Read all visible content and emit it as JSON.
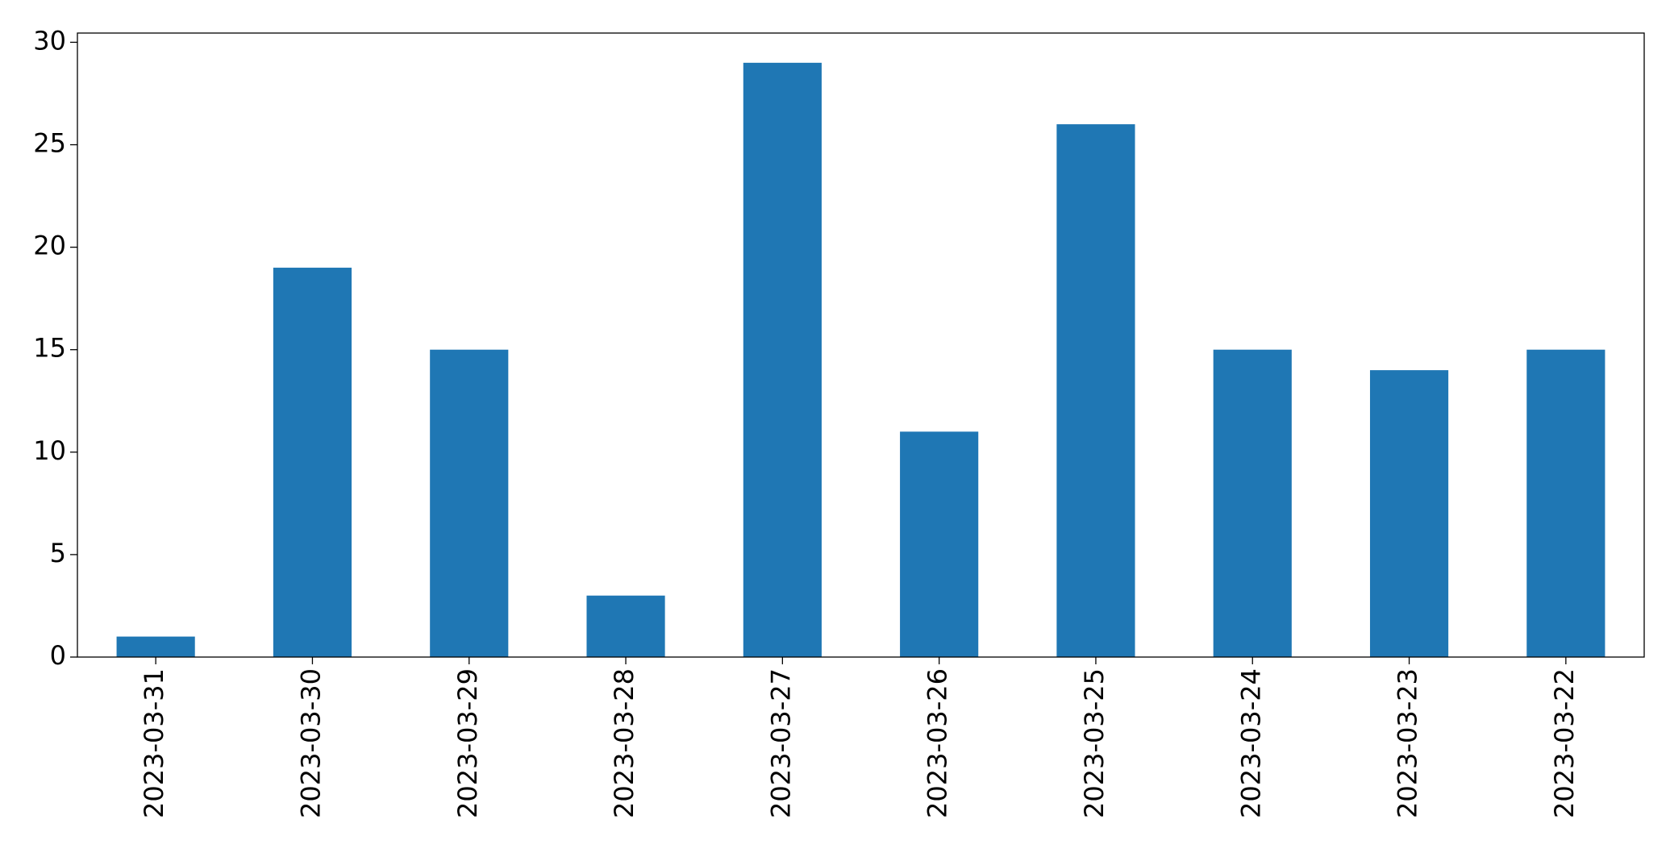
{
  "chart_data": {
    "type": "bar",
    "categories": [
      "2023-03-31",
      "2023-03-30",
      "2023-03-29",
      "2023-03-28",
      "2023-03-27",
      "2023-03-26",
      "2023-03-25",
      "2023-03-24",
      "2023-03-23",
      "2023-03-22"
    ],
    "values": [
      1,
      19,
      15,
      3,
      29,
      11,
      26,
      15,
      14,
      15
    ],
    "color": "#1f77b4",
    "ylim": [
      0,
      30.45
    ],
    "yticks": [
      0,
      5,
      10,
      15,
      20,
      25,
      30
    ],
    "grid": false
  }
}
